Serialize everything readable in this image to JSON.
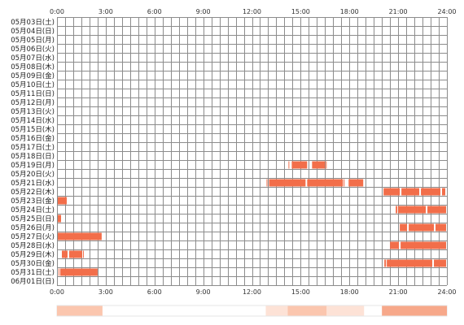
{
  "chart_data": {
    "type": "timeline",
    "x_ticks": [
      "0:00",
      "3:00",
      "6:00",
      "9:00",
      "12:00",
      "15:00",
      "18:00",
      "21:00",
      "24:00"
    ],
    "xlim_hours": [
      0,
      24
    ],
    "grid": true,
    "colors": {
      "bar": "#f26e4a",
      "grid": "#8c8c8c",
      "summary_low": "#fde2d6",
      "summary_mid": "#fbc6ae",
      "summary_high": "#f7a88a"
    },
    "days": [
      {
        "label": "05月03日(土)",
        "intervals": []
      },
      {
        "label": "05月04日(日)",
        "intervals": []
      },
      {
        "label": "05月05日(月)",
        "intervals": []
      },
      {
        "label": "05月06日(火)",
        "intervals": []
      },
      {
        "label": "05月07日(水)",
        "intervals": []
      },
      {
        "label": "05月08日(木)",
        "intervals": []
      },
      {
        "label": "05月09日(金)",
        "intervals": []
      },
      {
        "label": "05月10日(土)",
        "intervals": []
      },
      {
        "label": "05月11日(日)",
        "intervals": []
      },
      {
        "label": "05月12日(月)",
        "intervals": []
      },
      {
        "label": "05月13日(火)",
        "intervals": []
      },
      {
        "label": "05月14日(水)",
        "intervals": []
      },
      {
        "label": "05月15日(木)",
        "intervals": []
      },
      {
        "label": "05月16日(金)",
        "intervals": []
      },
      {
        "label": "05月17日(土)",
        "intervals": []
      },
      {
        "label": "05月18日(日)",
        "intervals": []
      },
      {
        "label": "05月19日(月)",
        "intervals": [
          [
            14.25,
            14.3
          ],
          [
            14.45,
            15.4
          ],
          [
            15.7,
            16.5
          ],
          [
            16.55,
            16.6
          ]
        ]
      },
      {
        "label": "05月20日(火)",
        "intervals": []
      },
      {
        "label": "05月21日(水)",
        "intervals": [
          [
            12.9,
            12.95
          ],
          [
            13.05,
            15.3
          ],
          [
            15.4,
            17.6
          ],
          [
            17.65,
            17.7
          ],
          [
            17.95,
            18.85
          ]
        ]
      },
      {
        "label": "05月22日(木)",
        "intervals": [
          [
            20.1,
            21.1
          ],
          [
            21.2,
            22.3
          ],
          [
            22.4,
            23.6
          ],
          [
            23.7,
            23.9
          ]
        ]
      },
      {
        "label": "05月23日(金)",
        "intervals": [
          [
            0.05,
            0.6
          ]
        ]
      },
      {
        "label": "05月24日(土)",
        "intervals": [
          [
            20.85,
            20.95
          ],
          [
            21.0,
            22.7
          ],
          [
            22.8,
            23.95
          ]
        ]
      },
      {
        "label": "05月25日(日)",
        "intervals": [
          [
            0.05,
            0.25
          ]
        ]
      },
      {
        "label": "05月26日(月)",
        "intervals": [
          [
            21.1,
            21.55
          ],
          [
            21.65,
            23.2
          ],
          [
            23.3,
            23.95
          ]
        ]
      },
      {
        "label": "05月27日(火)",
        "intervals": [
          [
            0.05,
            2.75
          ]
        ]
      },
      {
        "label": "05月28日(水)",
        "intervals": [
          [
            20.5,
            21.05
          ],
          [
            21.15,
            23.95
          ]
        ]
      },
      {
        "label": "05月29日(木)",
        "intervals": [
          [
            0.3,
            0.65
          ],
          [
            0.75,
            1.55
          ],
          [
            1.6,
            1.65
          ]
        ]
      },
      {
        "label": "05月30日(金)",
        "intervals": [
          [
            20.15,
            20.25
          ],
          [
            20.3,
            23.1
          ],
          [
            23.2,
            23.95
          ]
        ]
      },
      {
        "label": "05月31日(土)",
        "intervals": [
          [
            0.1,
            0.15
          ],
          [
            0.2,
            2.5
          ]
        ]
      },
      {
        "label": "06月01日(日)",
        "intervals": []
      }
    ],
    "summary_bands": [
      {
        "start": 0.0,
        "end": 2.8,
        "level": "mid"
      },
      {
        "start": 2.8,
        "end": 12.85,
        "level": "none"
      },
      {
        "start": 12.85,
        "end": 14.2,
        "level": "low"
      },
      {
        "start": 14.2,
        "end": 16.6,
        "level": "mid"
      },
      {
        "start": 16.6,
        "end": 18.9,
        "level": "low"
      },
      {
        "start": 18.9,
        "end": 20.0,
        "level": "none"
      },
      {
        "start": 20.0,
        "end": 24.0,
        "level": "high"
      }
    ]
  }
}
